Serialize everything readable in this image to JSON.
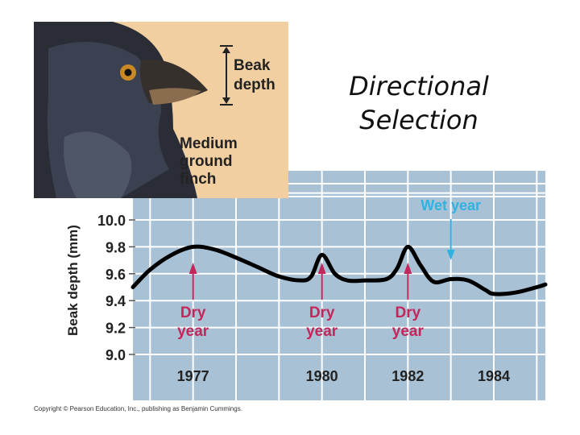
{
  "slide": {
    "title_line1": "Directional",
    "title_line2": "Selection",
    "copyright": "Copyright © Pearson Education, Inc., publishing as Benjamin Cummings."
  },
  "inset": {
    "label_beak_depth_1": "Beak",
    "label_beak_depth_2": "depth",
    "label_species_1": "Medium",
    "label_species_2": "ground",
    "label_species_3": "finch"
  },
  "colors": {
    "plot_background": "#a9c1d4",
    "inset_background": "#f1cfa1",
    "grid": "#ffffff",
    "curve": "#000000",
    "dry_annotation": "#c3265a",
    "wet_annotation": "#2fb2e2",
    "axis_text": "#222222"
  },
  "chart_data": {
    "type": "line",
    "title": "",
    "xlabel": "",
    "ylabel": "Beak depth (mm)",
    "xlim": [
      1975.6,
      1985.2
    ],
    "ylim": [
      8.9,
      10.2
    ],
    "xticks": [
      1977,
      1980,
      1982,
      1984
    ],
    "xtick_labels": [
      "1977",
      "1980",
      "1982",
      "1984"
    ],
    "yticks": [
      9.0,
      9.2,
      9.4,
      9.6,
      9.8,
      10.0
    ],
    "ytick_labels": [
      "9.0",
      "9.2",
      "9.4",
      "9.6",
      "9.8",
      "10.0"
    ],
    "grid": true,
    "series": [
      {
        "x": [
          1975.6,
          1976.0,
          1976.5,
          1977.0,
          1977.5,
          1978.0,
          1978.5,
          1979.0,
          1979.5,
          1979.75,
          1980.0,
          1980.3,
          1980.6,
          1981.0,
          1981.5,
          1981.75,
          1982.0,
          1982.3,
          1982.6,
          1983.0,
          1983.4,
          1983.8,
          1984.0,
          1984.5,
          1985.0,
          1985.2
        ],
        "y": [
          9.5,
          9.63,
          9.74,
          9.8,
          9.78,
          9.72,
          9.65,
          9.58,
          9.55,
          9.58,
          9.74,
          9.6,
          9.55,
          9.55,
          9.56,
          9.64,
          9.8,
          9.66,
          9.54,
          9.56,
          9.55,
          9.48,
          9.45,
          9.46,
          9.5,
          9.52
        ]
      }
    ],
    "annotations": [
      {
        "text_line1": "Dry",
        "text_line2": "year",
        "x": 1977,
        "kind": "dry"
      },
      {
        "text_line1": "Dry",
        "text_line2": "year",
        "x": 1980,
        "kind": "dry"
      },
      {
        "text_line1": "Dry",
        "text_line2": "year",
        "x": 1982,
        "kind": "dry"
      },
      {
        "text": "Wet year",
        "x": 1983,
        "kind": "wet"
      }
    ]
  }
}
